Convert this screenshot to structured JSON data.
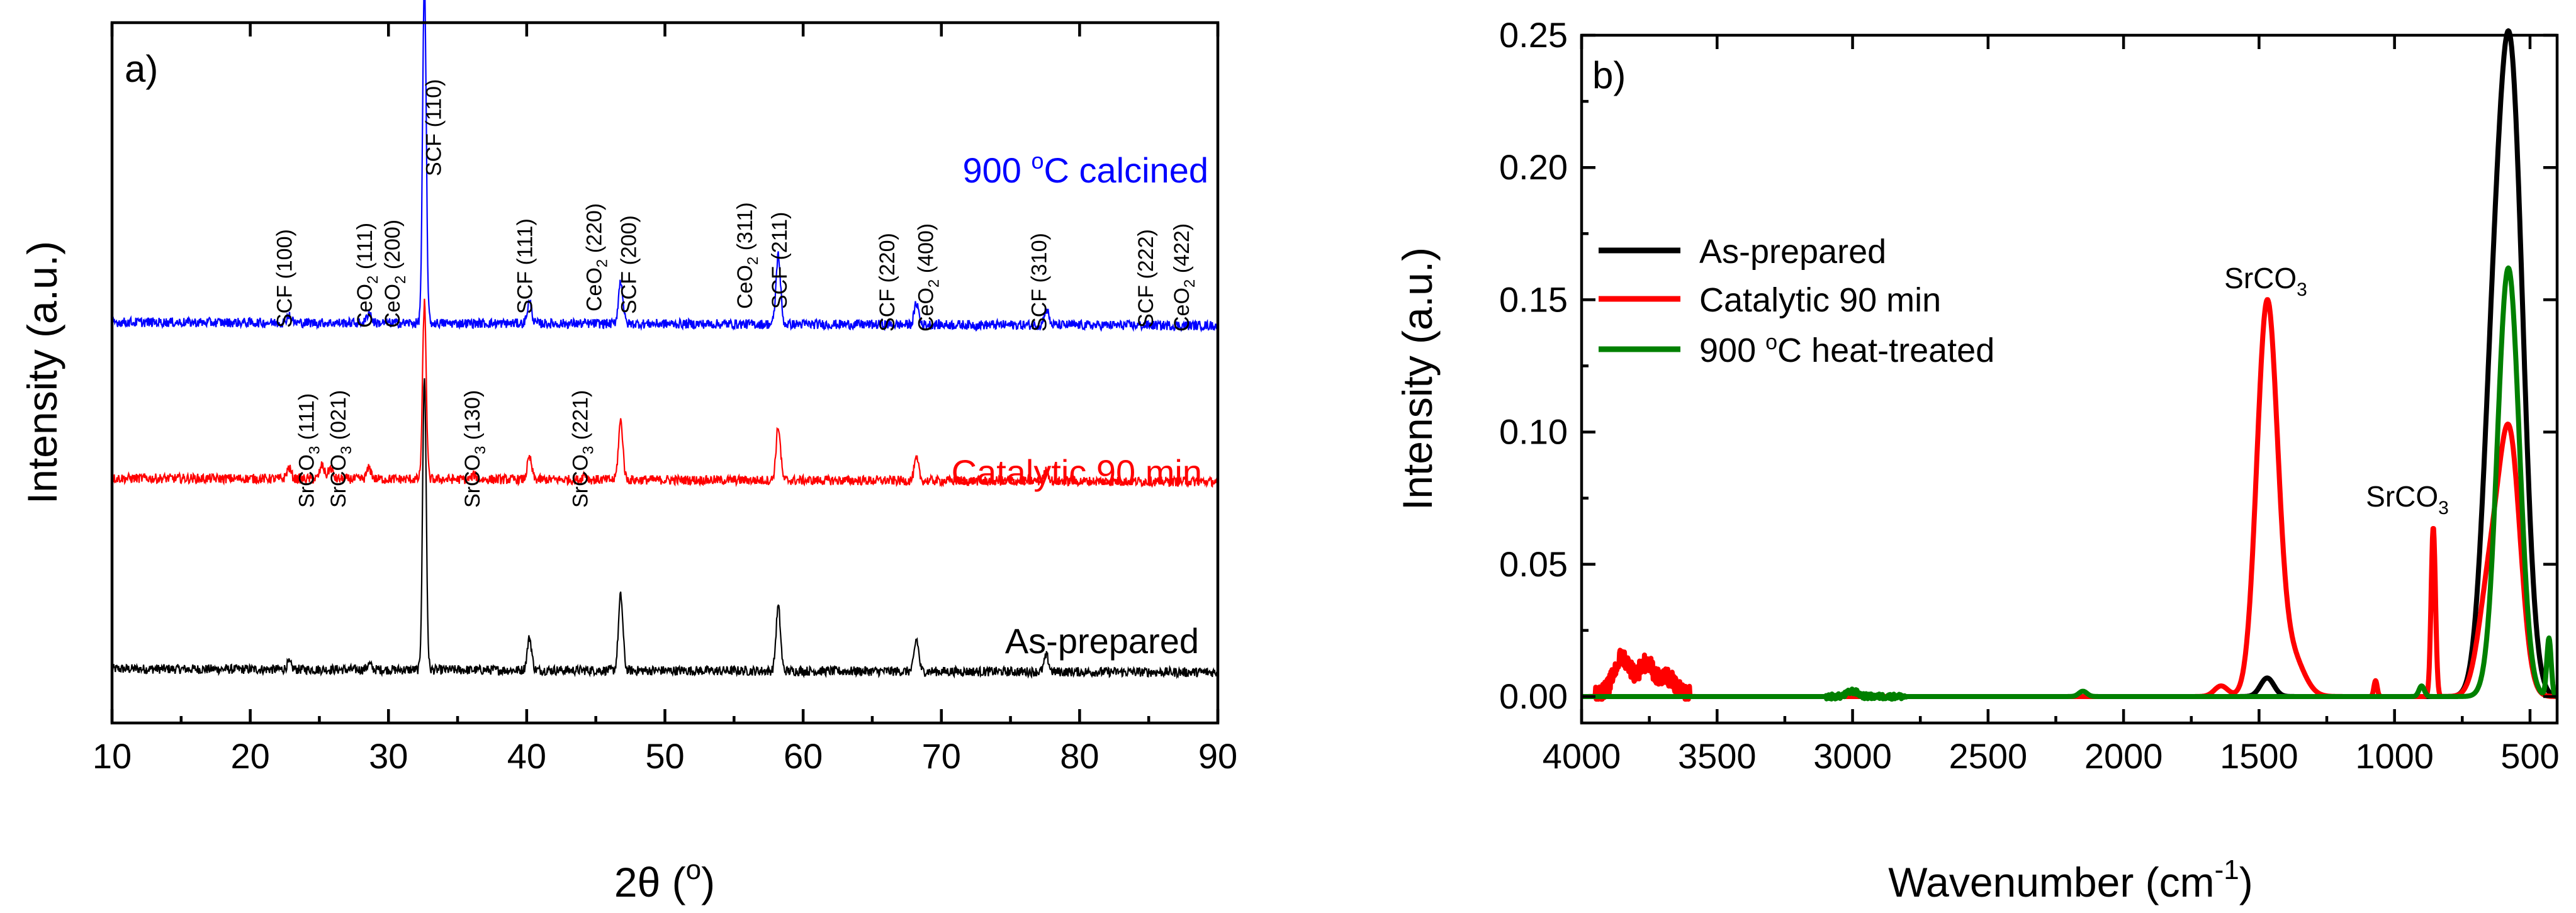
{
  "chart_data": [
    {
      "panel": "a)",
      "type": "line",
      "xlabel_prefix": "2θ (",
      "xlabel_unit": "o",
      "xlabel_suffix": ")",
      "ylabel": "Intensity (a.u.)",
      "xlim": [
        10,
        90
      ],
      "xticks": [
        10,
        20,
        30,
        40,
        50,
        60,
        70,
        80,
        90
      ],
      "yticks_shown": false,
      "series": [
        {
          "name": "As-prepared",
          "color": "#000000",
          "baseline": 0.0,
          "peaks": [
            [
              22.8,
              0.012
            ],
            [
              28.6,
              0.01
            ],
            [
              32.6,
              0.55
            ],
            [
              40.2,
              0.06
            ],
            [
              46.8,
              0.14
            ],
            [
              58.2,
              0.12
            ],
            [
              68.2,
              0.06
            ],
            [
              77.6,
              0.03
            ]
          ]
        },
        {
          "name": "Catalytic 90 min",
          "color": "#ff0000",
          "baseline": 0.3,
          "peaks": [
            [
              22.8,
              0.02
            ],
            [
              25.2,
              0.025
            ],
            [
              25.8,
              0.02
            ],
            [
              28.6,
              0.02
            ],
            [
              32.6,
              0.33
            ],
            [
              36.2,
              0.008
            ],
            [
              40.2,
              0.04
            ],
            [
              44.2,
              0.01
            ],
            [
              46.8,
              0.11
            ],
            [
              58.2,
              0.1
            ],
            [
              68.2,
              0.04
            ],
            [
              77.6,
              0.02
            ]
          ]
        },
        {
          "name": "900 °C calcined",
          "color": "#0000ff",
          "baseline": 0.62,
          "peaks": [
            [
              22.8,
              0.015
            ],
            [
              28.6,
              0.02
            ],
            [
              32.6,
              0.64
            ],
            [
              40.2,
              0.04
            ],
            [
              46.8,
              0.08
            ],
            [
              58.2,
              0.13
            ],
            [
              68.2,
              0.04
            ],
            [
              77.6,
              0.03
            ]
          ]
        }
      ],
      "curve_labels": {
        "blue": {
          "prefix": "900 ",
          "sup": "o",
          "suffix": "C calcined"
        },
        "red": "Catalytic 90 min",
        "black": "As-prepared"
      },
      "peak_labels": [
        {
          "text": "SCF (100)",
          "x": 23.0
        },
        {
          "text": "CeO",
          "sub": "2",
          "tail": " (111)",
          "x": 28.8
        },
        {
          "text": "CeO",
          "sub": "2",
          "tail": " (200)",
          "x": 30.8
        },
        {
          "text": "SCF (110)",
          "x": 33.8
        },
        {
          "text": "SCF (111)",
          "x": 40.4
        },
        {
          "text": "CeO",
          "sub": "2",
          "tail": " (220)",
          "x": 45.4
        },
        {
          "text": "SCF (200)",
          "x": 47.9
        },
        {
          "text": "CeO",
          "sub": "2",
          "tail": " (311)",
          "x": 56.3
        },
        {
          "text": "SCF (211)",
          "x": 58.8
        },
        {
          "text": "SCF (220)",
          "x": 66.6
        },
        {
          "text": "CeO",
          "sub": "2",
          "tail": " (400)",
          "x": 69.4
        },
        {
          "text": "SCF (310)",
          "x": 77.6
        },
        {
          "text": "SCF (222)",
          "x": 85.3
        },
        {
          "text": "CeO",
          "sub": "2",
          "tail": " (422)",
          "x": 87.9
        },
        {
          "text": "SrCO",
          "sub": "3",
          "tail": " (111)",
          "x": 24.6
        },
        {
          "text": "SrCO",
          "sub": "3",
          "tail": " (021)",
          "x": 26.9
        },
        {
          "text": "SrCO",
          "sub": "3",
          "tail": " (130)",
          "x": 36.6
        },
        {
          "text": "SrCO",
          "sub": "3",
          "tail": " (221)",
          "x": 44.4
        }
      ]
    },
    {
      "panel": "b)",
      "type": "line",
      "xlabel_prefix": "Wavenumber (cm",
      "xlabel_unit": "-1",
      "xlabel_suffix": ")",
      "ylabel": "Intensity (a.u.)",
      "xlim": [
        4000,
        400
      ],
      "ylim": [
        -0.01,
        0.25
      ],
      "xticks": [
        4000,
        3500,
        3000,
        2500,
        2000,
        1500,
        1000,
        500
      ],
      "yticks": [
        0.0,
        0.05,
        0.1,
        0.15,
        0.2,
        0.25
      ],
      "ytick_labels": [
        "0.00",
        "0.05",
        "0.10",
        "0.15",
        "0.20",
        "0.25"
      ],
      "legend_position": "top-left",
      "series": [
        {
          "name": "As-prepared",
          "color": "#000000",
          "peaks": [
            [
              1470,
              0.007,
              25
            ],
            [
              640,
              0.09,
              40
            ],
            [
              570,
              0.228,
              45
            ]
          ]
        },
        {
          "name": "Catalytic 90 min",
          "color": "#ff0000",
          "peaks": [
            [
              3850,
              0.014,
              30
            ],
            [
              3760,
              0.012,
              30
            ],
            [
              3680,
              0.006,
              25
            ],
            [
              1470,
              0.148,
              38
            ],
            [
              1380,
              0.015,
              45
            ],
            [
              1640,
              0.004,
              25
            ],
            [
              1070,
              0.006,
              6
            ],
            [
              857,
              0.064,
              8
            ],
            [
              650,
              0.04,
              40
            ],
            [
              575,
              0.095,
              40
            ]
          ]
        },
        {
          "name": "900 °C heat-treated",
          "color": "#008000",
          "peaks": [
            [
              3000,
              0.002,
              20
            ],
            [
              2150,
              0.002,
              15
            ],
            [
              900,
              0.004,
              10
            ],
            [
              580,
              0.162,
              40
            ],
            [
              430,
              0.022,
              8
            ]
          ]
        }
      ],
      "legend": [
        {
          "label": "As-prepared",
          "color": "#000000"
        },
        {
          "label": "Catalytic 90 min",
          "color": "#ff0000"
        },
        {
          "prefix": "900 ",
          "sup": "o",
          "suffix": "C heat-treated",
          "color": "#008000"
        }
      ],
      "annotations": [
        {
          "text": "SrCO",
          "sub": "3",
          "x": 1490,
          "y": 0.158
        },
        {
          "text": "SrCO",
          "sub": "3",
          "x": 880,
          "y": 0.073
        }
      ]
    }
  ]
}
